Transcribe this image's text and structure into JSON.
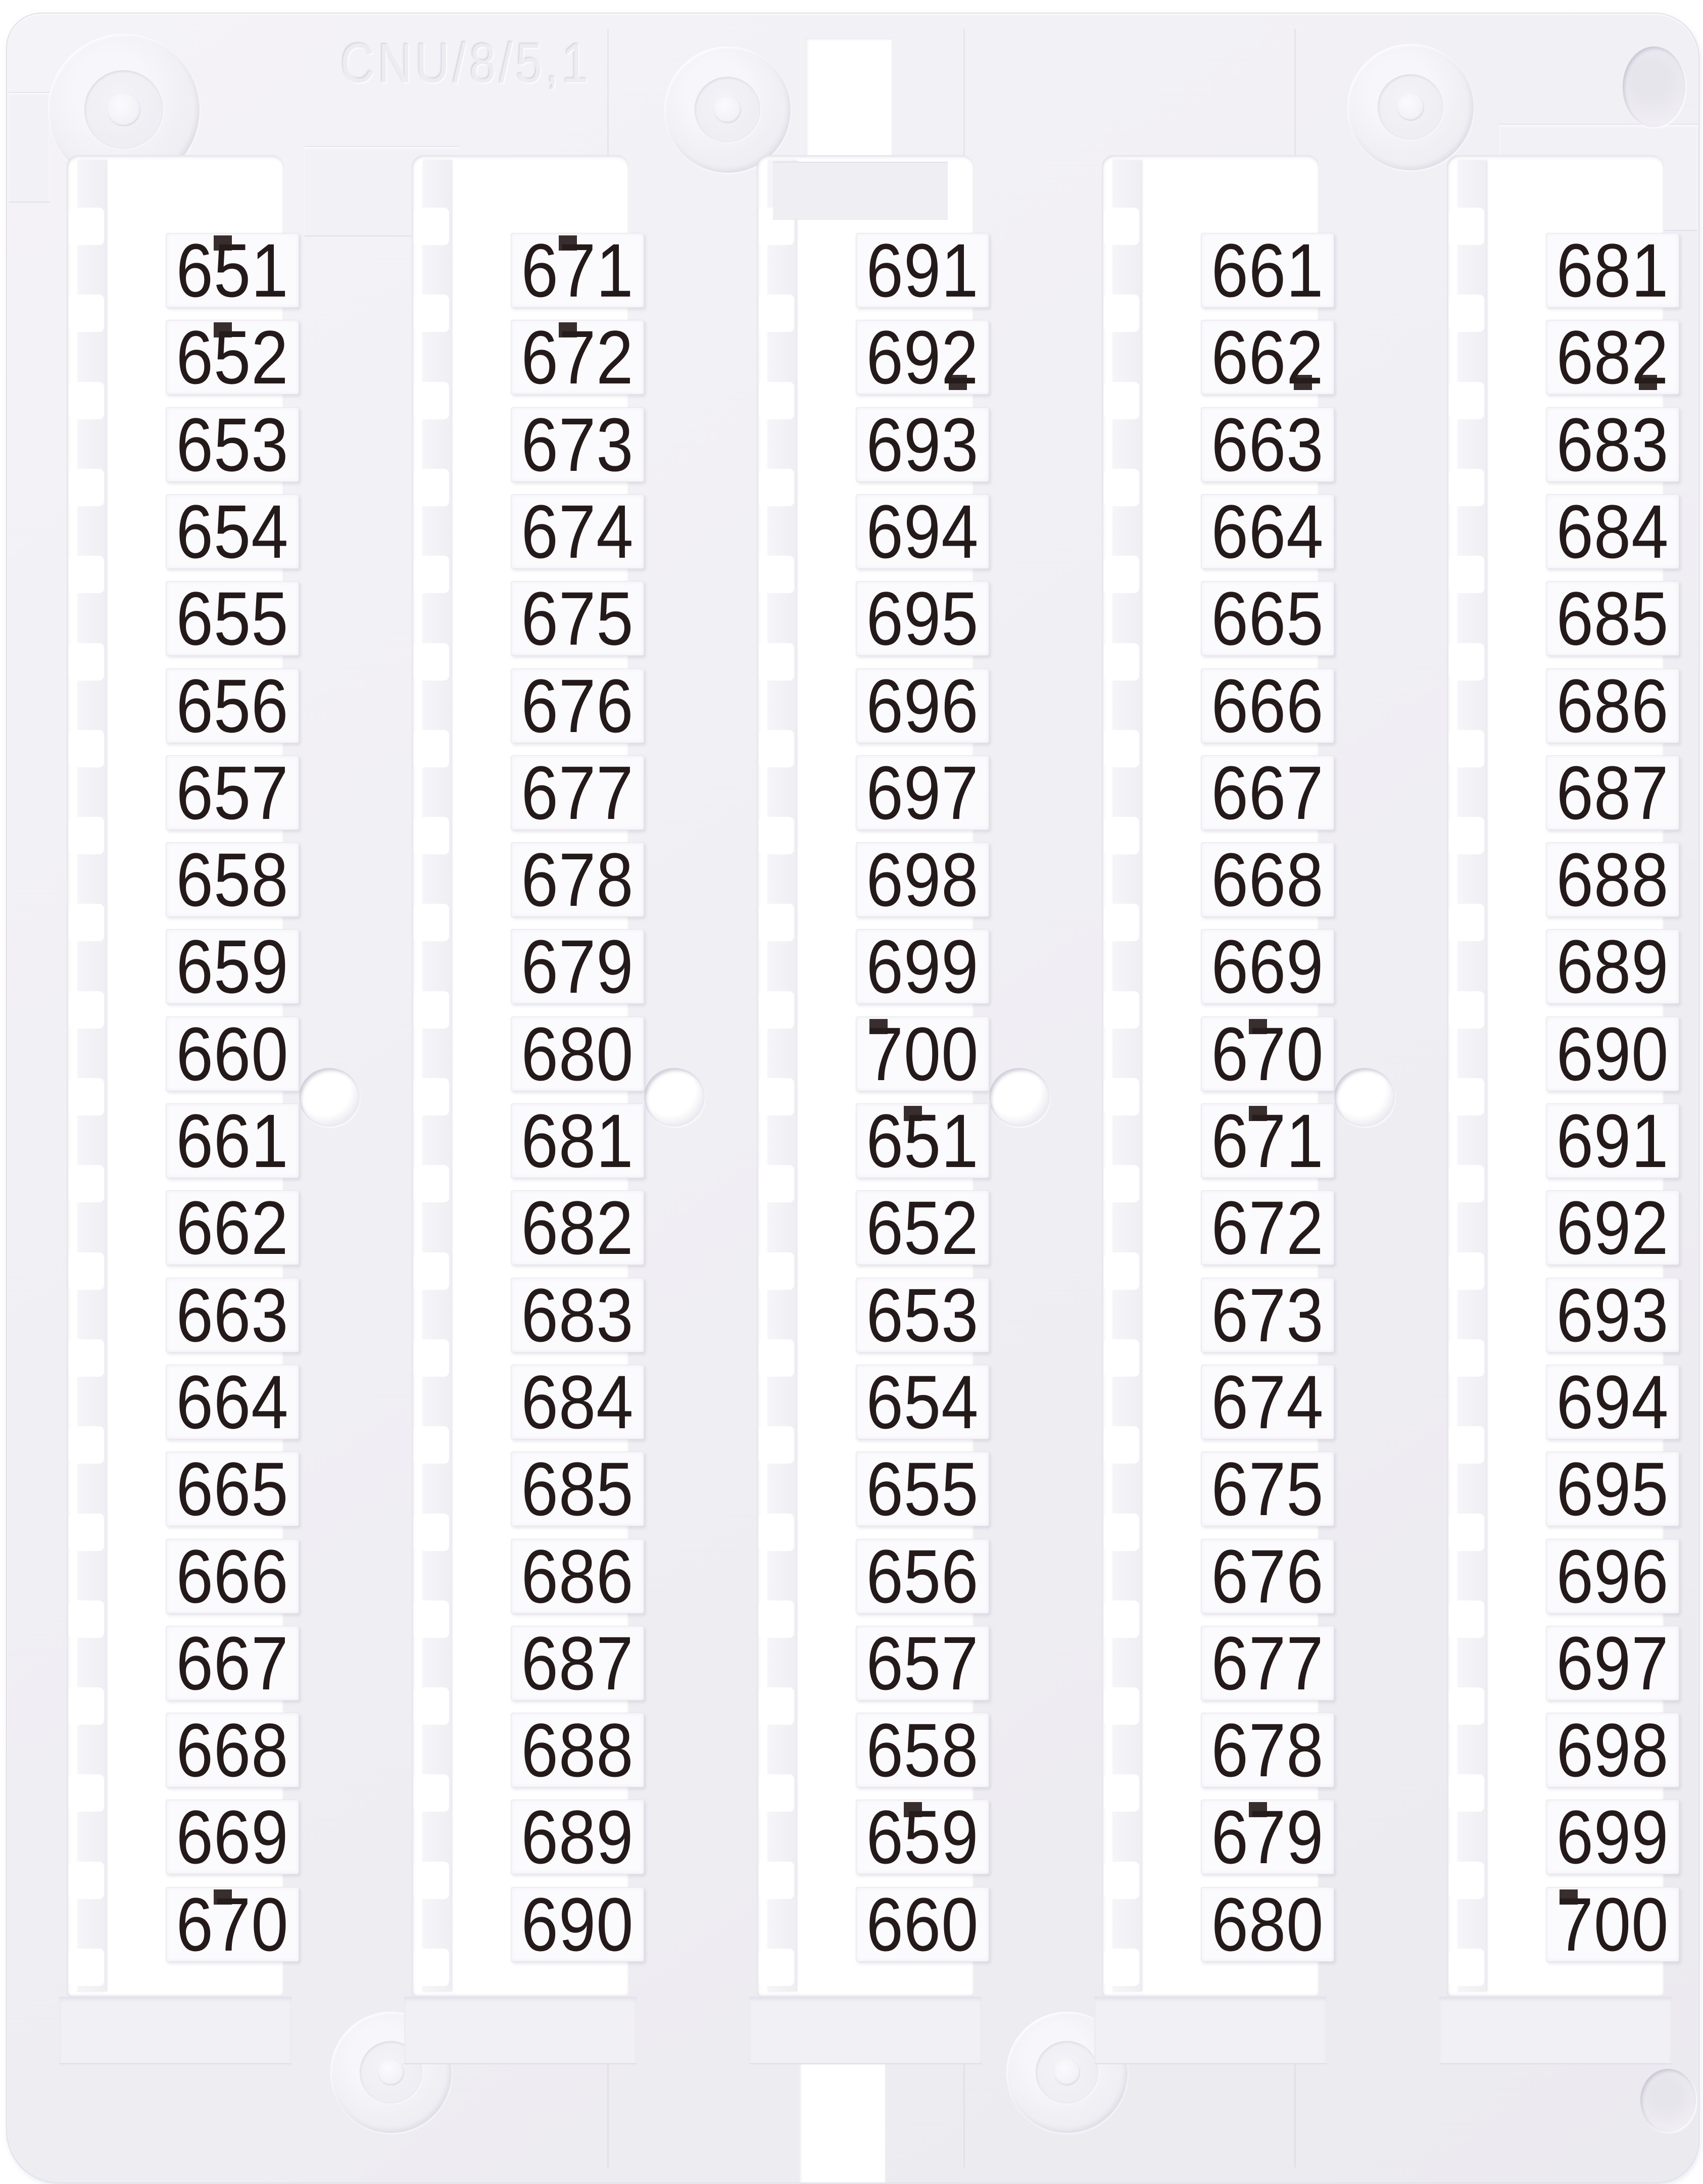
{
  "product": {
    "embossed_code": "CNU/8/5,1"
  },
  "colors": {
    "frame_plastic": "#f0eff4",
    "tag_face": "#fbfafd",
    "digit_ink": "#241a1a",
    "slot_background": "#ffffff"
  },
  "tag_columns": [
    {
      "values": [
        "651",
        "652",
        "653",
        "654",
        "655",
        "656",
        "657",
        "658",
        "659",
        "660",
        "661",
        "662",
        "663",
        "664",
        "665",
        "666",
        "667",
        "668",
        "669",
        "670"
      ]
    },
    {
      "values": [
        "671",
        "672",
        "673",
        "674",
        "675",
        "676",
        "677",
        "678",
        "679",
        "680",
        "681",
        "682",
        "683",
        "684",
        "685",
        "686",
        "687",
        "688",
        "689",
        "690"
      ]
    },
    {
      "values": [
        "691",
        "692",
        "693",
        "694",
        "695",
        "696",
        "697",
        "698",
        "699",
        "700",
        "651",
        "652",
        "653",
        "654",
        "655",
        "656",
        "657",
        "658",
        "659",
        "660"
      ]
    },
    {
      "values": [
        "661",
        "662",
        "663",
        "664",
        "665",
        "666",
        "667",
        "668",
        "669",
        "670",
        "671",
        "672",
        "673",
        "674",
        "675",
        "676",
        "677",
        "678",
        "679",
        "680"
      ]
    },
    {
      "values": [
        "681",
        "682",
        "683",
        "684",
        "685",
        "686",
        "687",
        "688",
        "689",
        "690",
        "691",
        "692",
        "693",
        "694",
        "695",
        "696",
        "697",
        "698",
        "699",
        "700"
      ]
    }
  ],
  "ink_marks": [
    {
      "col": 1,
      "row": 1,
      "pos": "top"
    },
    {
      "col": 1,
      "row": 2,
      "pos": "top"
    },
    {
      "col": 1,
      "row": 20,
      "pos": "top"
    },
    {
      "col": 2,
      "row": 1,
      "pos": "top"
    },
    {
      "col": 2,
      "row": 2,
      "pos": "top"
    },
    {
      "col": 3,
      "row": 2,
      "pos": "bottom"
    },
    {
      "col": 3,
      "row": 10,
      "pos": "topleft"
    },
    {
      "col": 3,
      "row": 11,
      "pos": "top"
    },
    {
      "col": 3,
      "row": 19,
      "pos": "top"
    },
    {
      "col": 4,
      "row": 2,
      "pos": "bottom"
    },
    {
      "col": 4,
      "row": 10,
      "pos": "top"
    },
    {
      "col": 4,
      "row": 11,
      "pos": "top"
    },
    {
      "col": 4,
      "row": 19,
      "pos": "top"
    },
    {
      "col": 5,
      "row": 2,
      "pos": "bottom"
    },
    {
      "col": 5,
      "row": 20,
      "pos": "topleft"
    }
  ]
}
